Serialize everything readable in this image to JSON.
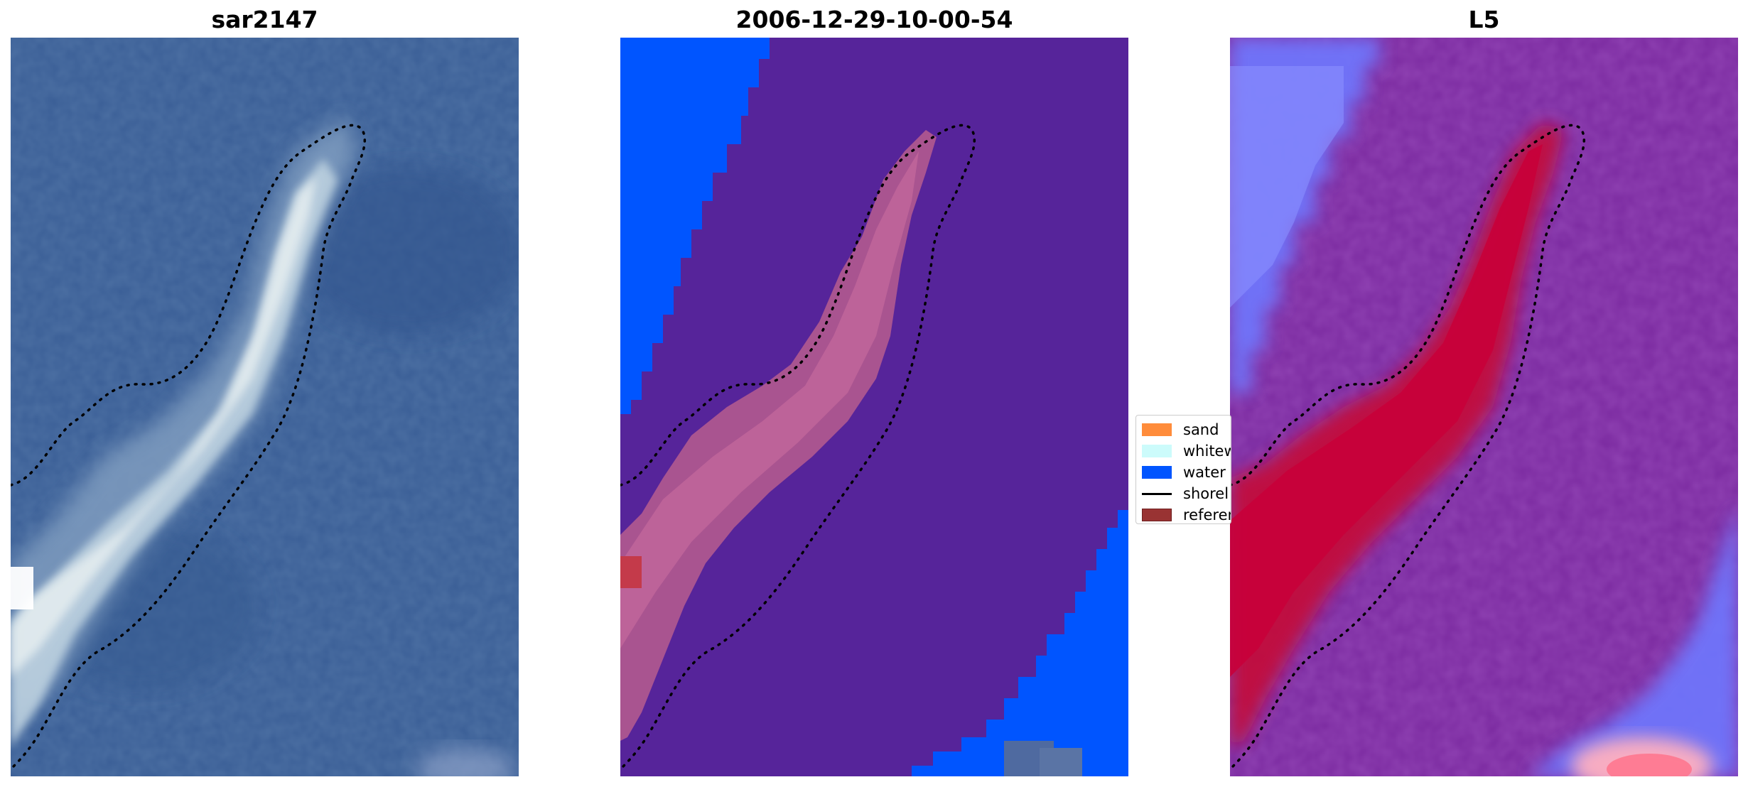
{
  "panels": [
    {
      "title": "sar2147"
    },
    {
      "title": "2006-12-29-10-00-54"
    },
    {
      "title": "L5"
    }
  ],
  "legend": {
    "items": [
      {
        "label": "sand",
        "color": "#ff8c3b",
        "kind": "patch"
      },
      {
        "label": "whitew",
        "color": "#ccfbfb",
        "kind": "patch"
      },
      {
        "label": "water",
        "color": "#0055ff",
        "kind": "patch"
      },
      {
        "label": "shorel",
        "color": "#000000",
        "kind": "line"
      },
      {
        "label": "referen",
        "color": "#993333",
        "kind": "patch"
      }
    ]
  },
  "colors": {
    "rgb_background": "#3a5e96",
    "class_background": "#56249a",
    "class_water": "#0055ff",
    "class_reference": "#b35a8f",
    "index_background": "#7b2aa0",
    "index_high": "#c2103e",
    "index_low": "#6e78ff"
  }
}
